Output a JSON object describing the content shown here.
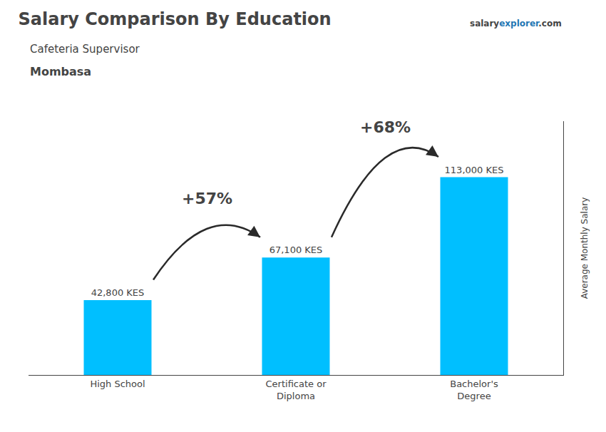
{
  "chart_data": {
    "type": "bar",
    "title": "Salary Comparison By Education",
    "subtitle": [
      "Cafeteria Supervisor",
      "Mombasa"
    ],
    "watermark": [
      "salary",
      "explorer",
      ".com"
    ],
    "ylabel": "Average Monthly Salary",
    "categories": [
      "High School",
      "Certificate or\nDiploma",
      "Bachelor's\nDegree"
    ],
    "values": [
      42800,
      67100,
      113000
    ],
    "value_labels": [
      "42,800 KES",
      "67,100 KES",
      "113,000 KES"
    ],
    "data_labels": true,
    "color": "#00BFFF",
    "ylim": [
      0,
      145000
    ],
    "tick_labels": "x",
    "grid": false,
    "annotations": [
      {
        "text": "+57%",
        "from": "High School",
        "to": "Certificate or\nDiploma"
      },
      {
        "text": "+68%",
        "from": "Certificate or\nDiploma",
        "to": "Bachelor's\nDegree"
      }
    ]
  }
}
